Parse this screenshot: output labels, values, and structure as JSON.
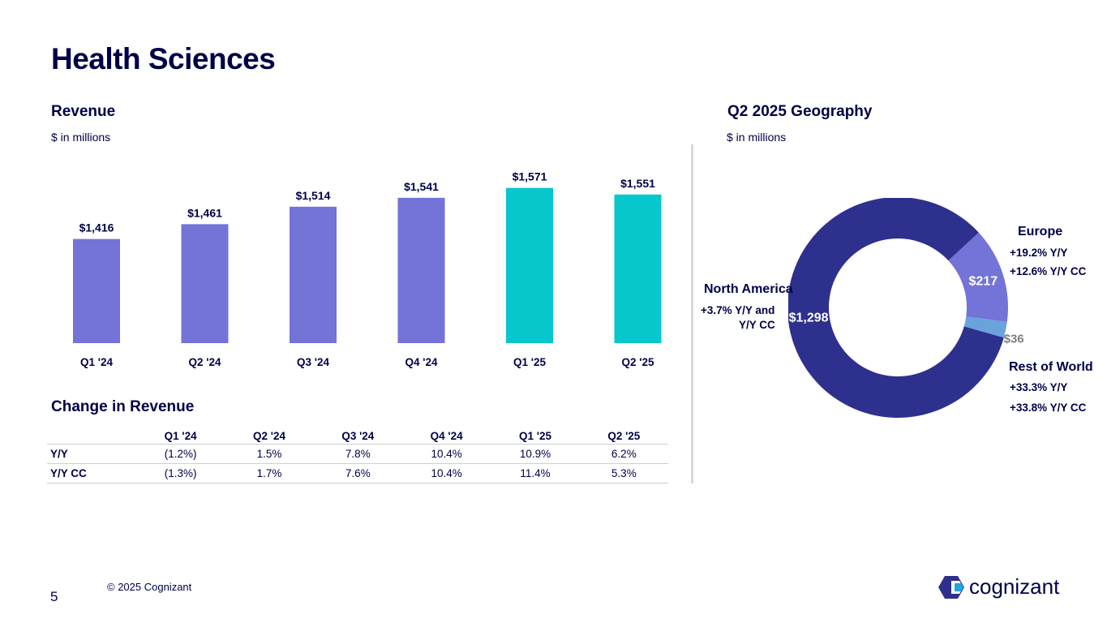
{
  "page": {
    "title": "Health Sciences",
    "page_number": "5",
    "copyright": "© 2025 Cognizant",
    "logo_text": "cognizant"
  },
  "revenue": {
    "title": "Revenue",
    "unit": "$ in millions"
  },
  "geo": {
    "title": "Q2 2025 Geography",
    "unit": "$ in millions",
    "north_america": {
      "name": "North America",
      "line1": "+3.7%  Y/Y and",
      "line2": "Y/Y CC"
    },
    "europe": {
      "name": "Europe",
      "line1": "+19.2%  Y/Y",
      "line2": "+12.6%  Y/Y CC"
    },
    "rest_of_world": {
      "name": "Rest of World",
      "line1": "+33.3% Y/Y",
      "line2": "+33.8% Y/Y CC"
    }
  },
  "change": {
    "title": "Change in Revenue",
    "headers": [
      "Q1 '24",
      "Q2 '24",
      "Q3 '24",
      "Q4 '24",
      "Q1 '25",
      "Q2 '25"
    ],
    "rows": [
      {
        "label": "Y/Y",
        "values": [
          "(1.2%)",
          "1.5%",
          "7.8%",
          "10.4%",
          "10.9%",
          "6.2%"
        ]
      },
      {
        "label": "Y/Y CC",
        "values": [
          "(1.3%)",
          "1.7%",
          "7.6%",
          "10.4%",
          "11.4%",
          "5.3%"
        ]
      }
    ]
  },
  "chart_data": [
    {
      "type": "bar",
      "title": "Revenue",
      "ylabel": "$ in millions",
      "categories": [
        "Q1 '24",
        "Q2 '24",
        "Q3 '24",
        "Q4 '24",
        "Q1 '25",
        "Q2 '25"
      ],
      "values": [
        1416,
        1461,
        1514,
        1541,
        1571,
        1551
      ],
      "value_labels": [
        "$1,416",
        "$1,461",
        "$1,514",
        "$1,541",
        "$1,571",
        "$1,551"
      ],
      "colors": [
        "#7373d8",
        "#7373d8",
        "#7373d8",
        "#7373d8",
        "#06c7cc",
        "#06c7cc"
      ],
      "ylim": [
        1100,
        1580
      ]
    },
    {
      "type": "pie",
      "title": "Q2 2025 Geography",
      "labels": [
        "North America",
        "Europe",
        "Rest of World"
      ],
      "values": [
        1298,
        217,
        36
      ],
      "value_labels": [
        "$1,298",
        "$217",
        "$36"
      ],
      "colors": [
        "#2e308e",
        "#7373d8",
        "#6aa2dc"
      ]
    }
  ]
}
